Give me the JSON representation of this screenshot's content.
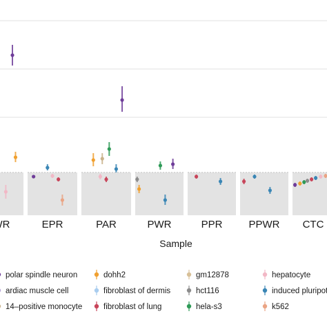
{
  "chart_data": {
    "type": "scatter",
    "title": "",
    "xlabel": "Sample",
    "ylabel": "",
    "grid": true,
    "legend_position": "bottom",
    "panels": [
      "WR",
      "EPR",
      "PAR",
      "PWR",
      "PPR",
      "PPWR",
      "CTC"
    ],
    "legend": [
      {
        "label": "polar spindle neuron",
        "color": "#6f3d99"
      },
      {
        "label": "ardiac muscle cell",
        "color": "#b8a3d6"
      },
      {
        "label": "14–positive monocyte",
        "color": "#c9b28a"
      },
      {
        "label": "dohh2",
        "color": "#f0a030"
      },
      {
        "label": "fibroblast of dermis",
        "color": "#a9cdef"
      },
      {
        "label": "fibroblast of lung",
        "color": "#c8455a"
      },
      {
        "label": "gm12878",
        "color": "#d8c098"
      },
      {
        "label": "hct116",
        "color": "#8c8c8c"
      },
      {
        "label": "hela-s3",
        "color": "#2e9a57"
      },
      {
        "label": "hepatocyte",
        "color": "#f2b8c6"
      },
      {
        "label": "induced pluripoter",
        "color": "#3a86b5"
      },
      {
        "label": "k562",
        "color": "#eaa484"
      }
    ],
    "series": [
      {
        "panel": "WR",
        "color": "#6f3d99",
        "points": [
          {
            "x": 0.75,
            "y": 1.7,
            "lo": 1.55,
            "hi": 1.85
          }
        ]
      },
      {
        "panel": "WR",
        "color": "#c9b28a",
        "points": [
          {
            "x": 0.05,
            "y": 0.62,
            "lo": 0.48,
            "hi": 0.78
          }
        ]
      },
      {
        "panel": "WR",
        "color": "#2e9a57",
        "points": [
          {
            "x": 0.3,
            "y": 0.62,
            "lo": 0.55,
            "hi": 0.72
          }
        ]
      },
      {
        "panel": "WR",
        "color": "#c8455a",
        "points": [
          {
            "x": 0.42,
            "y": 0.55,
            "lo": 0.48,
            "hi": 0.62
          }
        ]
      },
      {
        "panel": "WR",
        "color": "#f0a030",
        "points": [
          {
            "x": 0.82,
            "y": 0.22,
            "lo": 0.15,
            "hi": 0.3
          }
        ]
      },
      {
        "panel": "WR",
        "color": "#f2b8c6",
        "points": [
          {
            "x": 0.6,
            "y": -0.28,
            "lo": -0.38,
            "hi": -0.18
          }
        ]
      },
      {
        "panel": "EPR",
        "color": "#3a86b5",
        "points": [
          {
            "x": 0.4,
            "y": 0.07,
            "lo": 0.03,
            "hi": 0.12
          }
        ]
      },
      {
        "panel": "EPR",
        "color": "#6f3d99",
        "points": [
          {
            "x": 0.12,
            "y": -0.06,
            "lo": -0.08,
            "hi": -0.04
          }
        ]
      },
      {
        "panel": "EPR",
        "color": "#f2b8c6",
        "points": [
          {
            "x": 0.5,
            "y": -0.05,
            "lo": -0.08,
            "hi": -0.02
          }
        ]
      },
      {
        "panel": "EPR",
        "color": "#c8455a",
        "points": [
          {
            "x": 0.62,
            "y": -0.1,
            "lo": -0.13,
            "hi": -0.07
          }
        ]
      },
      {
        "panel": "EPR",
        "color": "#eaa484",
        "points": [
          {
            "x": 0.7,
            "y": -0.4,
            "lo": -0.48,
            "hi": -0.32
          }
        ]
      },
      {
        "panel": "PAR",
        "color": "#6f3d99",
        "points": [
          {
            "x": 0.82,
            "y": 1.05,
            "lo": 0.88,
            "hi": 1.25
          }
        ]
      },
      {
        "panel": "PAR",
        "color": "#2e9a57",
        "points": [
          {
            "x": 0.56,
            "y": 0.34,
            "lo": 0.24,
            "hi": 0.44
          }
        ]
      },
      {
        "panel": "PAR",
        "color": "#f0a030",
        "points": [
          {
            "x": 0.24,
            "y": 0.18,
            "lo": 0.09,
            "hi": 0.28
          }
        ]
      },
      {
        "panel": "PAR",
        "color": "#c9b28a",
        "points": [
          {
            "x": 0.42,
            "y": 0.2,
            "lo": 0.12,
            "hi": 0.28
          }
        ]
      },
      {
        "panel": "PAR",
        "color": "#3a86b5",
        "points": [
          {
            "x": 0.7,
            "y": 0.05,
            "lo": 0.0,
            "hi": 0.12
          }
        ]
      },
      {
        "panel": "PAR",
        "color": "#c8455a",
        "points": [
          {
            "x": 0.5,
            "y": -0.1,
            "lo": -0.14,
            "hi": -0.06
          }
        ]
      },
      {
        "panel": "PAR",
        "color": "#f2b8c6",
        "points": [
          {
            "x": 0.38,
            "y": -0.06,
            "lo": -0.1,
            "hi": -0.02
          }
        ]
      },
      {
        "panel": "PWR",
        "color": "#6f3d99",
        "points": [
          {
            "x": 0.78,
            "y": 0.12,
            "lo": 0.05,
            "hi": 0.2
          }
        ]
      },
      {
        "panel": "PWR",
        "color": "#2e9a57",
        "points": [
          {
            "x": 0.52,
            "y": 0.1,
            "lo": 0.04,
            "hi": 0.16
          }
        ]
      },
      {
        "panel": "PWR",
        "color": "#8c8c8c",
        "points": [
          {
            "x": 0.04,
            "y": -0.1,
            "lo": -0.14,
            "hi": -0.06
          }
        ]
      },
      {
        "panel": "PWR",
        "color": "#f0a030",
        "points": [
          {
            "x": 0.08,
            "y": -0.24,
            "lo": -0.3,
            "hi": -0.18
          }
        ]
      },
      {
        "panel": "PWR",
        "color": "#3a86b5",
        "points": [
          {
            "x": 0.62,
            "y": -0.4,
            "lo": -0.47,
            "hi": -0.32
          }
        ]
      },
      {
        "panel": "PPR",
        "color": "#c8455a",
        "points": [
          {
            "x": 0.18,
            "y": -0.06,
            "lo": -0.09,
            "hi": -0.03
          }
        ]
      },
      {
        "panel": "PPR",
        "color": "#3a86b5",
        "points": [
          {
            "x": 0.68,
            "y": -0.13,
            "lo": -0.18,
            "hi": -0.08
          }
        ]
      },
      {
        "panel": "PPWR",
        "color": "#c8455a",
        "points": [
          {
            "x": 0.08,
            "y": -0.13,
            "lo": -0.17,
            "hi": -0.09
          }
        ]
      },
      {
        "panel": "PPWR",
        "color": "#3a86b5",
        "points": [
          {
            "x": 0.3,
            "y": -0.06,
            "lo": -0.09,
            "hi": -0.03
          }
        ]
      },
      {
        "panel": "PPWR",
        "color": "#3a86b5",
        "points": [
          {
            "x": 0.62,
            "y": -0.26,
            "lo": -0.31,
            "hi": -0.21
          }
        ]
      },
      {
        "panel": "CTC",
        "color": "#6f3d99",
        "points": [
          {
            "x": 0.06,
            "y": -0.18,
            "lo": -0.21,
            "hi": -0.15
          }
        ]
      },
      {
        "panel": "CTC",
        "color": "#f0a030",
        "points": [
          {
            "x": 0.18,
            "y": -0.16,
            "lo": -0.19,
            "hi": -0.13
          }
        ]
      },
      {
        "panel": "CTC",
        "color": "#2e9a57",
        "points": [
          {
            "x": 0.28,
            "y": -0.14,
            "lo": -0.17,
            "hi": -0.11
          }
        ]
      },
      {
        "panel": "CTC",
        "color": "#8c8c8c",
        "points": [
          {
            "x": 0.36,
            "y": -0.12,
            "lo": -0.15,
            "hi": -0.09
          }
        ]
      },
      {
        "panel": "CTC",
        "color": "#c8455a",
        "points": [
          {
            "x": 0.46,
            "y": -0.1,
            "lo": -0.13,
            "hi": -0.07
          }
        ]
      },
      {
        "panel": "CTC",
        "color": "#3a86b5",
        "points": [
          {
            "x": 0.56,
            "y": -0.08,
            "lo": -0.11,
            "hi": -0.05
          }
        ]
      },
      {
        "panel": "CTC",
        "color": "#f2b8c6",
        "points": [
          {
            "x": 0.68,
            "y": -0.06,
            "lo": -0.09,
            "hi": -0.03
          }
        ]
      },
      {
        "panel": "CTC",
        "color": "#eaa484",
        "points": [
          {
            "x": 0.8,
            "y": -0.05,
            "lo": -0.08,
            "hi": -0.02
          }
        ]
      }
    ]
  }
}
